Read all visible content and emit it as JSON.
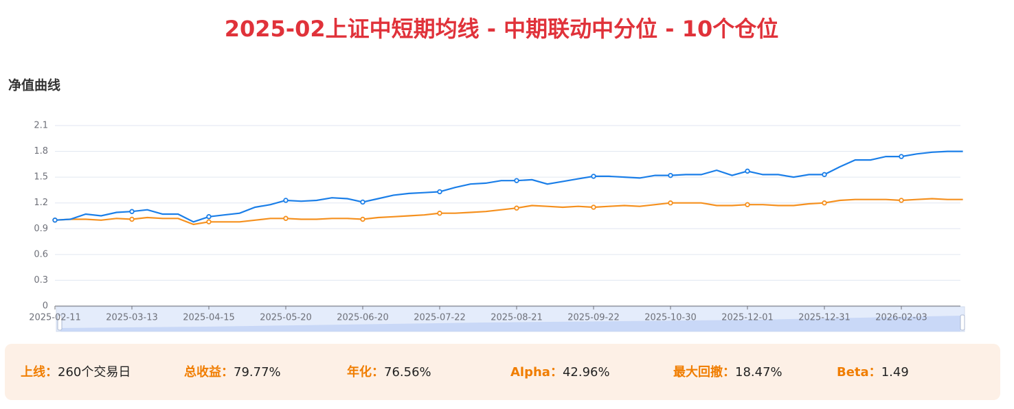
{
  "page_title": "2025-02上证中短期均线 - 中期联动中分位 - 10个仓位",
  "chart_data": {
    "type": "line",
    "title": "净值曲线",
    "categories": [
      "2025-02-11",
      null,
      null,
      null,
      null,
      "2025-03-13",
      null,
      null,
      null,
      null,
      "2025-04-15",
      null,
      null,
      null,
      null,
      "2025-05-20",
      null,
      null,
      null,
      null,
      "2025-06-20",
      null,
      null,
      null,
      null,
      "2025-07-22",
      null,
      null,
      null,
      null,
      "2025-08-21",
      null,
      null,
      null,
      null,
      "2025-09-22",
      null,
      null,
      null,
      null,
      "2025-10-30",
      null,
      null,
      null,
      null,
      "2025-12-01",
      null,
      null,
      null,
      null,
      "2025-12-31",
      null,
      null,
      null,
      null,
      "2026-02-03",
      null,
      null,
      null,
      null
    ],
    "series": [
      {
        "color": "#1a7ee8",
        "values": [
          1.0,
          1.01,
          1.07,
          1.05,
          1.09,
          1.1,
          1.12,
          1.07,
          1.07,
          0.98,
          1.04,
          1.06,
          1.08,
          1.15,
          1.18,
          1.23,
          1.22,
          1.23,
          1.26,
          1.25,
          1.21,
          1.25,
          1.29,
          1.31,
          1.32,
          1.33,
          1.38,
          1.42,
          1.43,
          1.46,
          1.46,
          1.47,
          1.42,
          1.45,
          1.48,
          1.51,
          1.51,
          1.5,
          1.49,
          1.52,
          1.52,
          1.53,
          1.53,
          1.58,
          1.52,
          1.57,
          1.53,
          1.53,
          1.5,
          1.53,
          1.53,
          1.62,
          1.7,
          1.7,
          1.74,
          1.74,
          1.77,
          1.79,
          1.8,
          1.8
        ]
      },
      {
        "color": "#f5901e",
        "values": [
          1.0,
          1.01,
          1.01,
          1.0,
          1.02,
          1.01,
          1.03,
          1.02,
          1.02,
          0.95,
          0.98,
          0.98,
          0.98,
          1.0,
          1.02,
          1.02,
          1.01,
          1.01,
          1.02,
          1.02,
          1.01,
          1.03,
          1.04,
          1.05,
          1.06,
          1.08,
          1.08,
          1.09,
          1.1,
          1.12,
          1.14,
          1.17,
          1.16,
          1.15,
          1.16,
          1.15,
          1.16,
          1.17,
          1.16,
          1.18,
          1.2,
          1.2,
          1.2,
          1.17,
          1.17,
          1.18,
          1.18,
          1.17,
          1.17,
          1.19,
          1.2,
          1.23,
          1.24,
          1.24,
          1.24,
          1.23,
          1.24,
          1.25,
          1.24,
          1.24
        ]
      }
    ],
    "ylim": [
      0,
      2.1
    ],
    "yticks": [
      0,
      0.3,
      0.6,
      0.9,
      1.2,
      1.5,
      1.8,
      2.1
    ],
    "grid": true
  },
  "stats": [
    {
      "label": "上线：",
      "value": "260个交易日"
    },
    {
      "label": "总收益：",
      "value": "79.77%"
    },
    {
      "label": "年化：",
      "value": "76.56%"
    },
    {
      "label": "Alpha：",
      "value": "42.96%"
    },
    {
      "label": "最大回撤：",
      "value": "18.47%"
    },
    {
      "label": "Beta：",
      "value": "1.49"
    }
  ]
}
